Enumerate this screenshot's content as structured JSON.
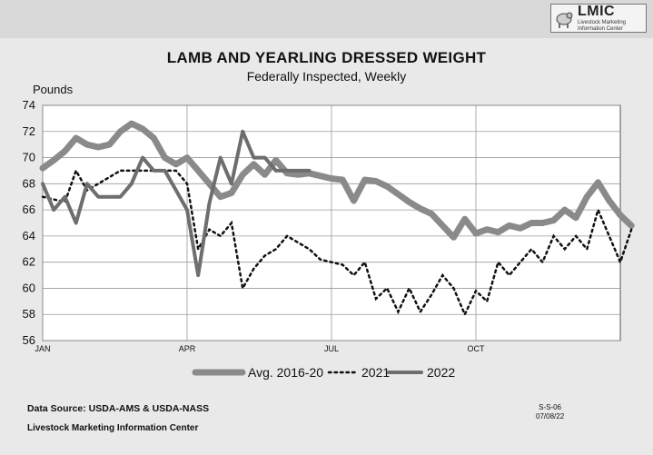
{
  "header": {
    "logo_title": "LMIC",
    "logo_subtitle_1": "Livestock Marketing",
    "logo_subtitle_2": "Information Center"
  },
  "footer": {
    "source": "Data Source:  USDA-AMS & USDA-NASS",
    "center": "Livestock Marketing Information Center",
    "code": "S-S-06",
    "date": "07/08/22"
  },
  "colors": {
    "avg": "#8a8a8a",
    "y2021": "#111111",
    "y2022": "#6e6e6e",
    "grid": "#9a9a9a",
    "plot_bg": "#ffffff"
  },
  "chart_data": {
    "type": "line",
    "title": "LAMB AND YEARLING DRESSED WEIGHT",
    "subtitle": "Federally Inspected, Weekly",
    "ylabel": "Pounds",
    "xlabel": "",
    "ylim": [
      56,
      74
    ],
    "yticks": [
      56,
      58,
      60,
      62,
      64,
      66,
      68,
      70,
      72,
      74
    ],
    "xlim": [
      1,
      53
    ],
    "xticks": [
      {
        "label": "JAN",
        "week": 1
      },
      {
        "label": "APR",
        "week": 14
      },
      {
        "label": "JUL",
        "week": 27
      },
      {
        "label": "OCT",
        "week": 40
      }
    ],
    "grid": true,
    "legend_position": "bottom",
    "series": [
      {
        "name": "Avg. 2016-20",
        "style": "thick-solid",
        "values": [
          69.2,
          69.8,
          70.5,
          71.5,
          71,
          70.8,
          71,
          72,
          72.6,
          72.2,
          71.5,
          70,
          69.5,
          70,
          69,
          68,
          67,
          67.3,
          68.7,
          69.5,
          68.7,
          69.8,
          68.8,
          68.7,
          68.8,
          68.6,
          68.4,
          68.3,
          66.7,
          68.3,
          68.2,
          67.8,
          67.2,
          66.6,
          66.1,
          65.7,
          64.8,
          63.9,
          65.3,
          64.2,
          64.5,
          64.3,
          64.8,
          64.6,
          65,
          65,
          65.2,
          66,
          65.4,
          67,
          68.1,
          66.7,
          65.6,
          64.8
        ]
      },
      {
        "name": "2021",
        "style": "dotted",
        "values": [
          67,
          66.8,
          66.6,
          69,
          67.5,
          68,
          68.5,
          69,
          69,
          69,
          69,
          69,
          69,
          68,
          63,
          64.5,
          64,
          65,
          60,
          61.5,
          62.5,
          63,
          64,
          63.5,
          63,
          62.2,
          62,
          61.8,
          61,
          62,
          59.2,
          60,
          58.2,
          60,
          58.2,
          59.5,
          61,
          60,
          58,
          59.8,
          59,
          62,
          61,
          62,
          63,
          62,
          64,
          63,
          64,
          63,
          66,
          64,
          62,
          64.5
        ]
      },
      {
        "name": "2022",
        "style": "medium-solid",
        "values": [
          68,
          66,
          67,
          65,
          68,
          67,
          67,
          67,
          68,
          70,
          69,
          69,
          67.5,
          66,
          61,
          66.5,
          70,
          68,
          72,
          70,
          70,
          69,
          69,
          69,
          69
        ]
      }
    ]
  }
}
